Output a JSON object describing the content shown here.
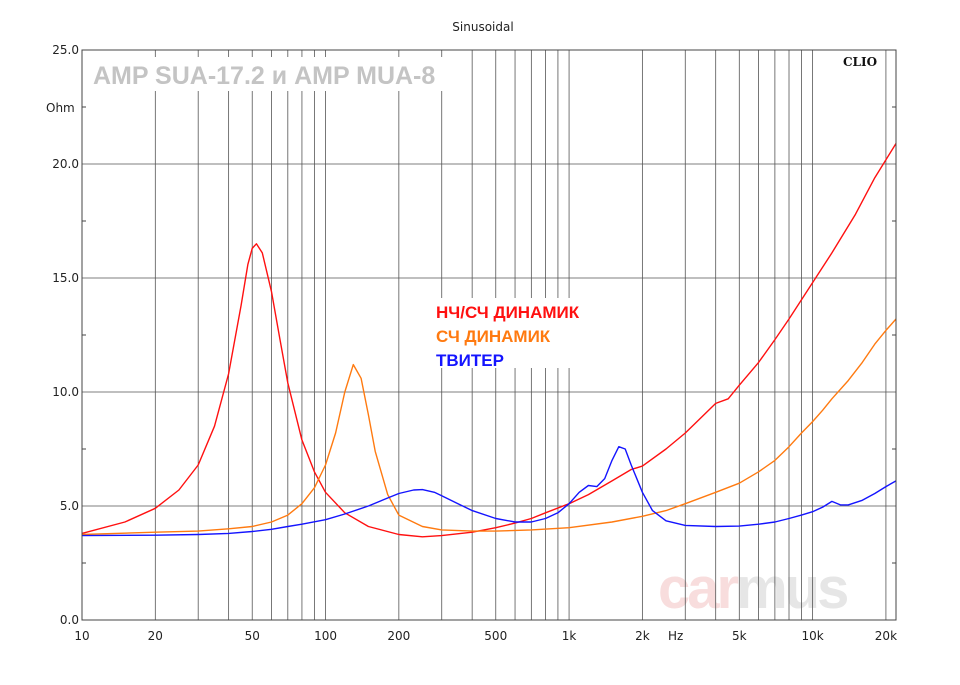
{
  "chart_data": {
    "type": "line",
    "title": "Sinusoidal",
    "xscale": "log",
    "xunit": "Hz",
    "yunit": "Ohm",
    "xlim": [
      10,
      22000
    ],
    "ylim": [
      0,
      25
    ],
    "grid": true,
    "x_tick_labels": [
      {
        "x": 10,
        "label": "10"
      },
      {
        "x": 20,
        "label": "20"
      },
      {
        "x": 50,
        "label": "50"
      },
      {
        "x": 100,
        "label": "100"
      },
      {
        "x": 200,
        "label": "200"
      },
      {
        "x": 500,
        "label": "500"
      },
      {
        "x": 1000,
        "label": "1k"
      },
      {
        "x": 2000,
        "label": "2k"
      },
      {
        "x": 5000,
        "label": "5k"
      },
      {
        "x": 10000,
        "label": "10k"
      },
      {
        "x": 20000,
        "label": "20k"
      }
    ],
    "y_tick_labels": [
      {
        "y": 0,
        "label": "0.0"
      },
      {
        "y": 5,
        "label": "5.0"
      },
      {
        "y": 10,
        "label": "10.0"
      },
      {
        "y": 15,
        "label": "15.0"
      },
      {
        "y": 20,
        "label": "20.0"
      },
      {
        "y": 25,
        "label": "25.0"
      }
    ],
    "annotation": "AMP SUA-17.2 и AMP MUA-8",
    "brand_label": "CLIO",
    "series": [
      {
        "name": "НЧ/СЧ ДИНАМИК",
        "color": "#ff1010",
        "points": [
          [
            10,
            3.8
          ],
          [
            15,
            4.3
          ],
          [
            20,
            4.9
          ],
          [
            25,
            5.7
          ],
          [
            30,
            6.8
          ],
          [
            35,
            8.5
          ],
          [
            40,
            10.8
          ],
          [
            45,
            13.8
          ],
          [
            48,
            15.6
          ],
          [
            50,
            16.3
          ],
          [
            52,
            16.5
          ],
          [
            55,
            16.1
          ],
          [
            60,
            14.4
          ],
          [
            65,
            12.3
          ],
          [
            70,
            10.4
          ],
          [
            80,
            7.9
          ],
          [
            90,
            6.5
          ],
          [
            100,
            5.6
          ],
          [
            120,
            4.7
          ],
          [
            150,
            4.1
          ],
          [
            200,
            3.75
          ],
          [
            250,
            3.65
          ],
          [
            300,
            3.7
          ],
          [
            400,
            3.85
          ],
          [
            500,
            4.05
          ],
          [
            600,
            4.25
          ],
          [
            700,
            4.45
          ],
          [
            800,
            4.7
          ],
          [
            1000,
            5.1
          ],
          [
            1200,
            5.5
          ],
          [
            1500,
            6.1
          ],
          [
            1800,
            6.6
          ],
          [
            2000,
            6.75
          ],
          [
            2500,
            7.5
          ],
          [
            3000,
            8.2
          ],
          [
            3500,
            8.9
          ],
          [
            4000,
            9.5
          ],
          [
            4500,
            9.7
          ],
          [
            5000,
            10.3
          ],
          [
            6000,
            11.3
          ],
          [
            7000,
            12.3
          ],
          [
            8000,
            13.2
          ],
          [
            10000,
            14.8
          ],
          [
            12000,
            16.1
          ],
          [
            15000,
            17.8
          ],
          [
            18000,
            19.4
          ],
          [
            22000,
            20.9
          ]
        ]
      },
      {
        "name": "СЧ ДИНАМИК",
        "color": "#ff7a10",
        "points": [
          [
            10,
            3.75
          ],
          [
            20,
            3.85
          ],
          [
            30,
            3.9
          ],
          [
            40,
            4.0
          ],
          [
            50,
            4.1
          ],
          [
            60,
            4.3
          ],
          [
            70,
            4.6
          ],
          [
            80,
            5.1
          ],
          [
            90,
            5.8
          ],
          [
            100,
            6.8
          ],
          [
            110,
            8.2
          ],
          [
            120,
            10.0
          ],
          [
            130,
            11.2
          ],
          [
            140,
            10.6
          ],
          [
            150,
            9.0
          ],
          [
            160,
            7.4
          ],
          [
            180,
            5.5
          ],
          [
            200,
            4.6
          ],
          [
            250,
            4.1
          ],
          [
            300,
            3.95
          ],
          [
            400,
            3.9
          ],
          [
            500,
            3.9
          ],
          [
            700,
            3.95
          ],
          [
            1000,
            4.05
          ],
          [
            1500,
            4.3
          ],
          [
            2000,
            4.55
          ],
          [
            2500,
            4.8
          ],
          [
            3000,
            5.1
          ],
          [
            4000,
            5.6
          ],
          [
            5000,
            6.0
          ],
          [
            6000,
            6.5
          ],
          [
            7000,
            7.0
          ],
          [
            8000,
            7.6
          ],
          [
            9000,
            8.2
          ],
          [
            10000,
            8.7
          ],
          [
            11000,
            9.2
          ],
          [
            12000,
            9.7
          ],
          [
            14000,
            10.5
          ],
          [
            16000,
            11.3
          ],
          [
            18000,
            12.1
          ],
          [
            20000,
            12.7
          ],
          [
            22000,
            13.2
          ]
        ]
      },
      {
        "name": "ТВИТЕР",
        "color": "#1414ff",
        "points": [
          [
            10,
            3.7
          ],
          [
            20,
            3.72
          ],
          [
            30,
            3.75
          ],
          [
            40,
            3.8
          ],
          [
            50,
            3.88
          ],
          [
            60,
            3.98
          ],
          [
            70,
            4.1
          ],
          [
            80,
            4.2
          ],
          [
            100,
            4.4
          ],
          [
            120,
            4.65
          ],
          [
            150,
            5.0
          ],
          [
            180,
            5.35
          ],
          [
            200,
            5.55
          ],
          [
            230,
            5.7
          ],
          [
            250,
            5.72
          ],
          [
            280,
            5.6
          ],
          [
            300,
            5.45
          ],
          [
            350,
            5.1
          ],
          [
            400,
            4.8
          ],
          [
            500,
            4.45
          ],
          [
            600,
            4.3
          ],
          [
            700,
            4.3
          ],
          [
            800,
            4.45
          ],
          [
            900,
            4.7
          ],
          [
            1000,
            5.1
          ],
          [
            1100,
            5.6
          ],
          [
            1200,
            5.9
          ],
          [
            1300,
            5.85
          ],
          [
            1400,
            6.2
          ],
          [
            1500,
            7.0
          ],
          [
            1600,
            7.6
          ],
          [
            1700,
            7.5
          ],
          [
            1800,
            6.8
          ],
          [
            2000,
            5.6
          ],
          [
            2200,
            4.8
          ],
          [
            2500,
            4.35
          ],
          [
            3000,
            4.15
          ],
          [
            4000,
            4.1
          ],
          [
            5000,
            4.12
          ],
          [
            6000,
            4.2
          ],
          [
            7000,
            4.3
          ],
          [
            8000,
            4.45
          ],
          [
            9000,
            4.6
          ],
          [
            10000,
            4.75
          ],
          [
            11000,
            4.95
          ],
          [
            12000,
            5.2
          ],
          [
            13000,
            5.05
          ],
          [
            14000,
            5.05
          ],
          [
            16000,
            5.25
          ],
          [
            18000,
            5.55
          ],
          [
            20000,
            5.85
          ],
          [
            22000,
            6.1
          ]
        ]
      }
    ]
  },
  "watermark": {
    "part1": "car",
    "part2": "mus",
    "color1": "#f8dddd",
    "color2": "#e6e6e6"
  }
}
